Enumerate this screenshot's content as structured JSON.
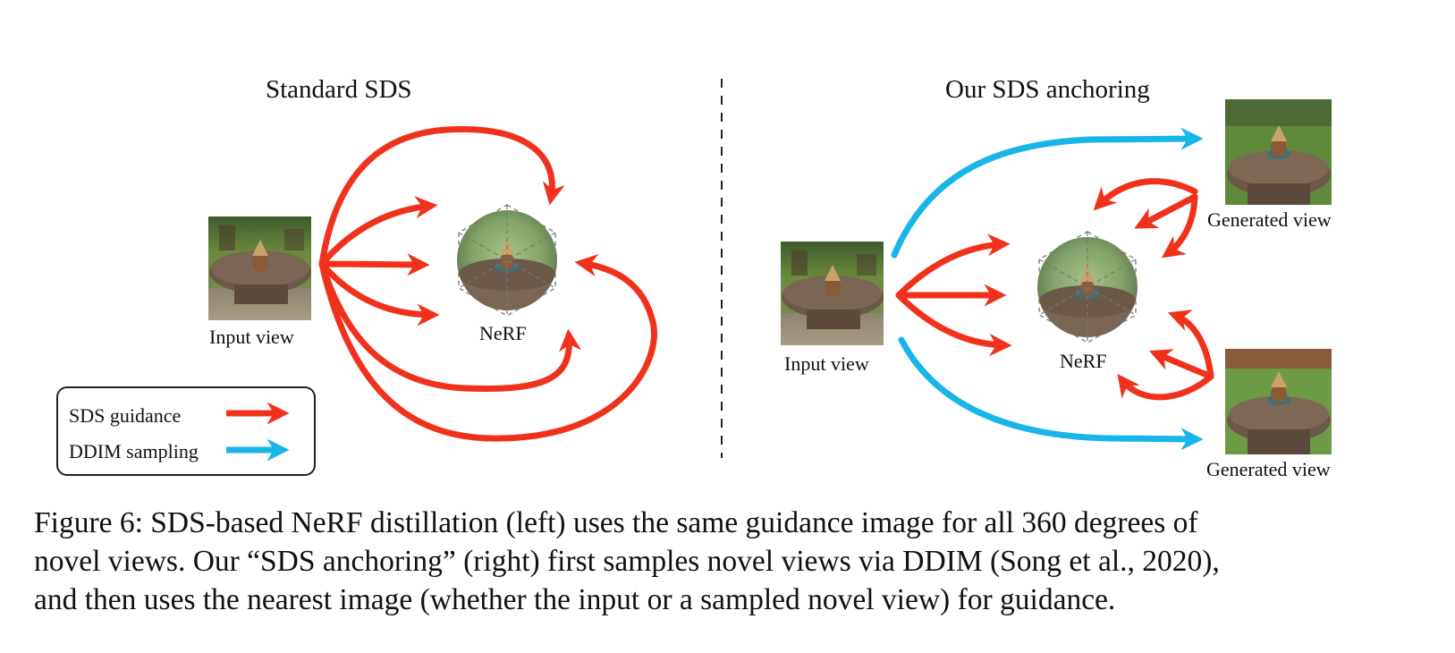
{
  "figure": {
    "left_panel": {
      "title": "Standard SDS",
      "input_label": "Input view",
      "nerf_label": "NeRF"
    },
    "right_panel": {
      "title": "Our SDS anchoring",
      "input_label": "Input view",
      "nerf_label": "NeRF",
      "generated_top_label": "Generated view",
      "generated_bottom_label": "Generated view"
    },
    "legend": {
      "sds_label": "SDS guidance",
      "ddim_label": "DDIM sampling"
    },
    "colors": {
      "sds_arrow": "#f0321d",
      "ddim_arrow": "#18b5e8",
      "grass": "#6d8a3e",
      "wood": "#6b5848"
    }
  },
  "caption": {
    "line1": "Figure 6: SDS-based NeRF distillation (left) uses the same guidance image for all 360 degrees of",
    "line2": "novel views. Our “SDS anchoring” (right) first samples novel views via DDIM (Song et al., 2020),",
    "line3": "and then uses the nearest image (whether the input or a sampled novel view) for guidance."
  }
}
